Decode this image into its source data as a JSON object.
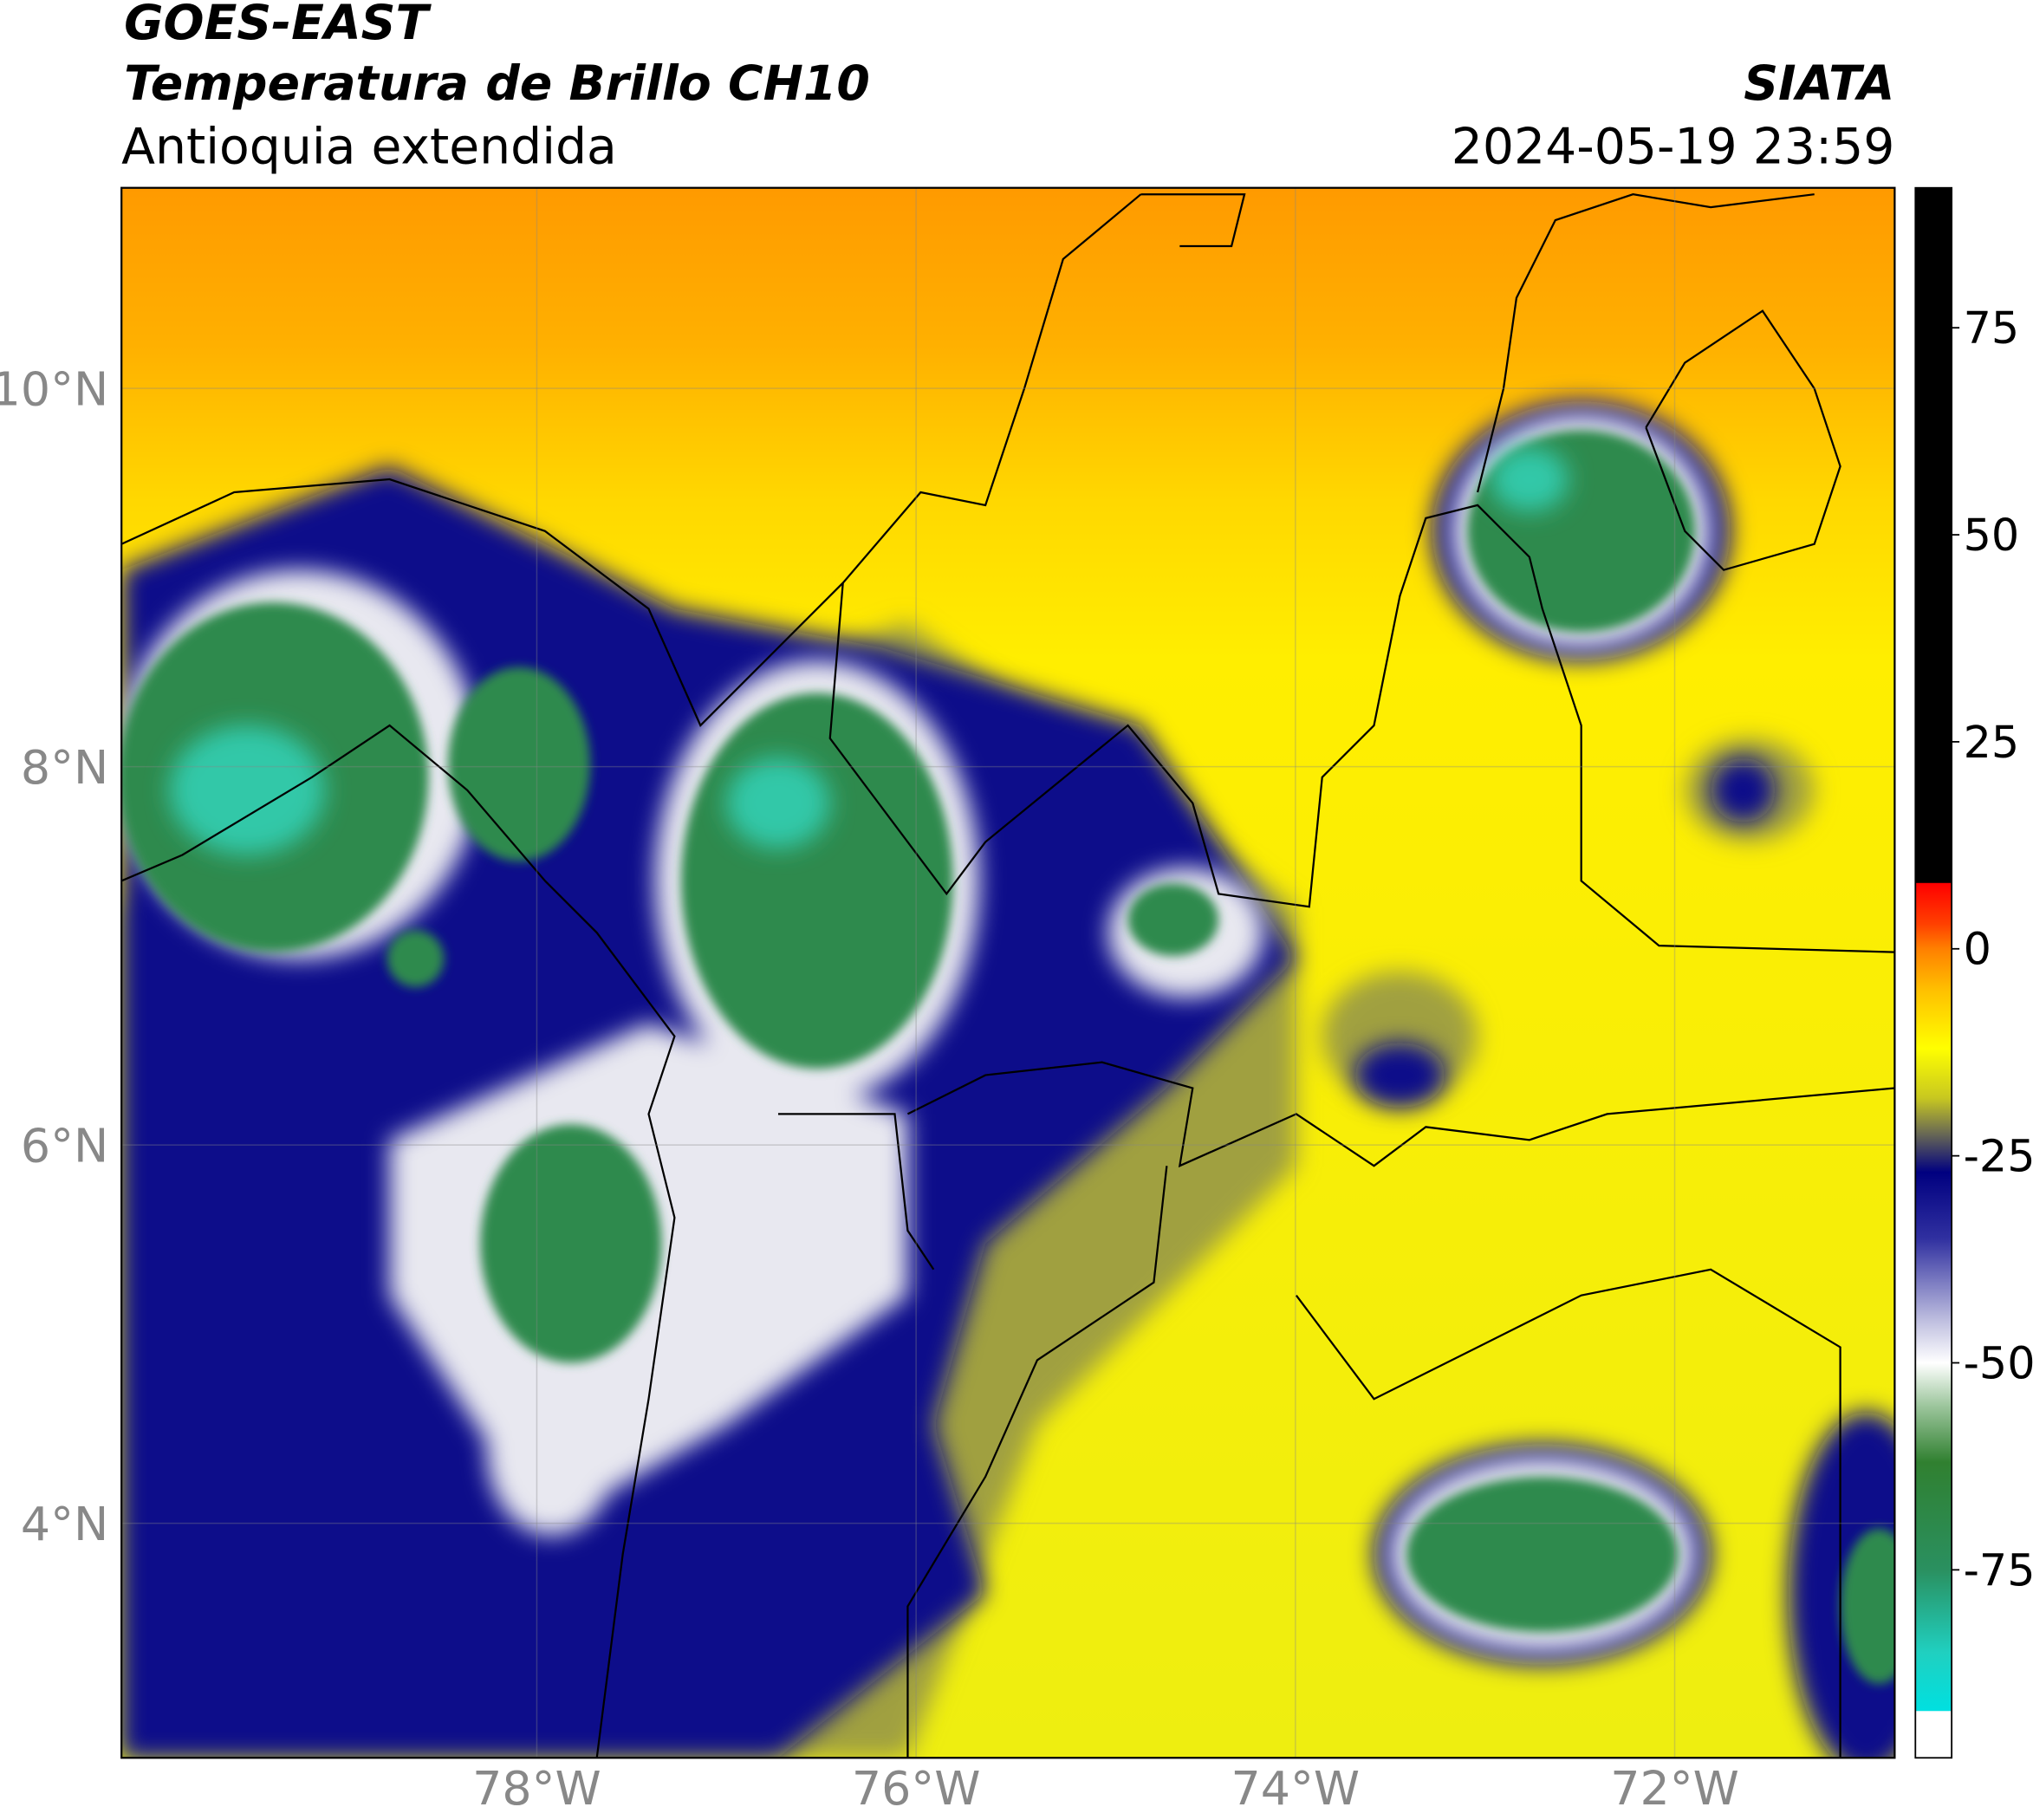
{
  "header": {
    "title": "GOES-EAST",
    "subtitle": "Temperatura de Brillo CH10",
    "region": "Antioquia extendida",
    "source": "SIATA",
    "datetime": "2024-05-19 23:59"
  },
  "map": {
    "xlim": [
      -80.19,
      -70.84
    ],
    "ylim": [
      2.76,
      11.06
    ],
    "grid": true,
    "xticks": [
      {
        "value": -78,
        "label": "78°W"
      },
      {
        "value": -76,
        "label": "76°W"
      },
      {
        "value": -74,
        "label": "74°W"
      },
      {
        "value": -72,
        "label": "72°W"
      }
    ],
    "yticks": [
      {
        "value": 4,
        "label": "4°N"
      },
      {
        "value": 6,
        "label": "6°N"
      },
      {
        "value": 8,
        "label": "8°N"
      },
      {
        "value": 10,
        "label": "10°N"
      }
    ]
  },
  "colorbar": {
    "lim": [
      -97.7,
      91.9
    ],
    "ticks": [
      -75,
      -50,
      -25,
      0,
      25,
      50,
      75
    ],
    "stops": [
      {
        "value": 91.9,
        "color": "#000000"
      },
      {
        "value": 8,
        "color": "#000000"
      },
      {
        "value": 7.9,
        "color": "#ff0000"
      },
      {
        "value": 3,
        "color": "#ff4000"
      },
      {
        "value": 0,
        "color": "#ff8000"
      },
      {
        "value": -5,
        "color": "#ffc000"
      },
      {
        "value": -12,
        "color": "#ffff00"
      },
      {
        "value": -18,
        "color": "#c8c820"
      },
      {
        "value": -22,
        "color": "#707050"
      },
      {
        "value": -27,
        "color": "#000080"
      },
      {
        "value": -35,
        "color": "#3030a0"
      },
      {
        "value": -45,
        "color": "#c0c0e0"
      },
      {
        "value": -50,
        "color": "#ffffff"
      },
      {
        "value": -55,
        "color": "#a0c8a0"
      },
      {
        "value": -62,
        "color": "#308030"
      },
      {
        "value": -75,
        "color": "#2a9060"
      },
      {
        "value": -85,
        "color": "#20d0c0"
      },
      {
        "value": -92,
        "color": "#00e0e0"
      },
      {
        "value": -92.1,
        "color": "#ffffff"
      },
      {
        "value": -97.7,
        "color": "#ffffff"
      }
    ]
  }
}
